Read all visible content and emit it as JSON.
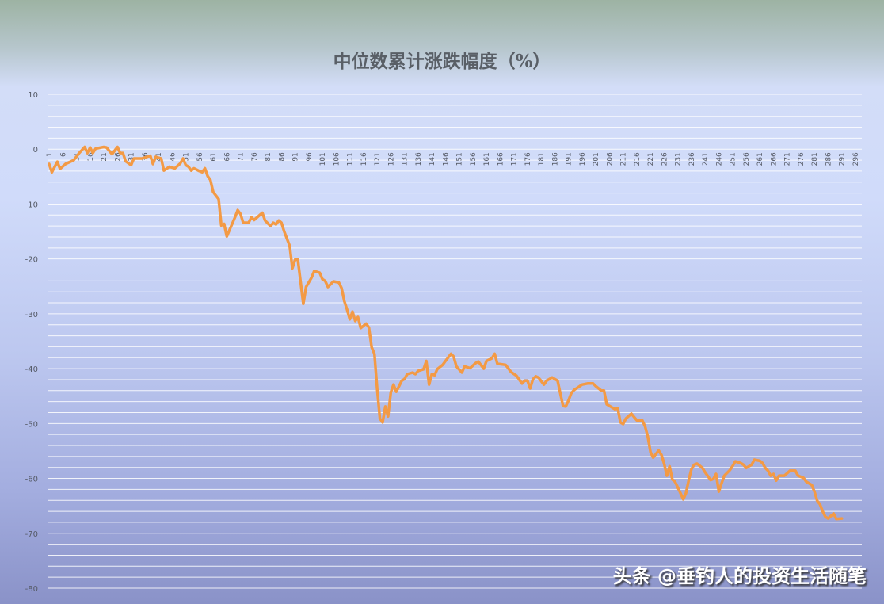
{
  "chart_data": {
    "type": "line",
    "title": "中位数累计涨跌幅度（%）",
    "xlabel": "",
    "ylabel": "",
    "ylim": [
      -80,
      10
    ],
    "y_ticks": [
      10,
      0,
      -10,
      -20,
      -30,
      -40,
      -50,
      -60,
      -70,
      -80
    ],
    "y_minor_grid_step": 2,
    "grid": true,
    "x_tick_labels": [
      1,
      6,
      11,
      16,
      21,
      26,
      31,
      36,
      41,
      46,
      51,
      56,
      61,
      66,
      71,
      76,
      81,
      86,
      91,
      96,
      101,
      106,
      111,
      116,
      121,
      126,
      131,
      136,
      141,
      146,
      151,
      156,
      161,
      166,
      171,
      176,
      181,
      186,
      191,
      196,
      201,
      206,
      211,
      216,
      221,
      226,
      231,
      236,
      241,
      246,
      251,
      256,
      261,
      266,
      271,
      276,
      281,
      286,
      291,
      296
    ],
    "xlim": [
      1,
      298
    ],
    "line_color": "#f39a45",
    "series": [
      {
        "x": [
          1,
          2,
          4,
          5,
          7,
          10,
          12,
          14,
          15,
          16,
          17,
          18,
          21,
          22,
          24,
          26,
          27,
          28,
          29,
          31,
          32,
          35,
          38,
          39,
          40,
          42,
          43,
          45,
          47,
          49,
          50,
          51,
          52,
          53,
          54,
          56,
          57,
          58,
          59,
          60,
          61,
          63,
          64,
          65,
          66,
          67,
          69,
          70,
          71,
          72,
          74,
          75,
          76,
          79,
          80,
          82,
          83,
          84,
          85,
          86,
          87,
          89,
          90,
          91,
          92,
          94,
          95,
          97,
          98,
          100,
          101,
          102,
          103,
          105,
          107,
          108,
          109,
          110,
          111,
          112,
          113,
          114,
          115,
          117,
          118,
          119,
          120,
          121,
          122,
          123,
          124,
          125,
          126,
          127,
          128,
          130,
          131,
          132,
          134,
          135,
          136,
          138,
          139,
          140,
          141,
          142,
          143,
          145,
          146,
          148,
          149,
          150,
          152,
          153,
          155,
          157,
          158,
          160,
          161,
          163,
          164,
          165,
          168,
          170,
          172,
          174,
          175,
          176,
          177,
          178,
          179,
          180,
          182,
          183,
          185,
          187,
          189,
          190,
          191,
          192,
          193,
          196,
          198,
          200,
          201,
          203,
          204,
          205,
          208,
          209,
          210,
          211,
          212,
          214,
          216,
          218,
          219,
          220,
          221,
          222,
          224,
          225,
          226,
          227,
          228,
          229,
          230,
          232,
          233,
          234,
          235,
          236,
          237,
          238,
          240,
          241,
          243,
          244,
          245,
          246,
          247,
          248,
          250,
          251,
          252,
          254,
          255,
          256,
          258,
          259,
          261,
          262,
          263,
          264,
          265,
          266,
          267,
          268,
          270,
          272,
          274,
          275,
          277,
          278,
          279,
          280,
          281,
          282,
          283,
          284,
          285,
          286,
          288,
          289,
          291
        ],
        "y": [
          -2.7,
          -4.2,
          -2.3,
          -3.6,
          -2.7,
          -2.0,
          -0.7,
          0.4,
          -0.7,
          0.3,
          -0.7,
          0.1,
          0.4,
          0.3,
          -0.9,
          0.4,
          -0.7,
          -0.7,
          -2.2,
          -2.9,
          -1.7,
          -1.7,
          -1.2,
          -2.7,
          -1.4,
          -1.7,
          -3.9,
          -3.2,
          -3.5,
          -2.6,
          -1.7,
          -2.9,
          -3.2,
          -3.9,
          -3.5,
          -4.0,
          -4.2,
          -3.5,
          -4.9,
          -5.6,
          -7.8,
          -9.1,
          -13.9,
          -13.6,
          -15.9,
          -14.7,
          -12.4,
          -11.1,
          -11.8,
          -13.4,
          -13.4,
          -12.4,
          -12.9,
          -11.6,
          -13.0,
          -14.0,
          -13.4,
          -13.7,
          -13.0,
          -13.4,
          -15.0,
          -17.6,
          -21.7,
          -20.1,
          -20.1,
          -28.2,
          -25.1,
          -23.4,
          -22.2,
          -22.5,
          -23.7,
          -24.0,
          -25.1,
          -24.1,
          -24.3,
          -25.3,
          -27.7,
          -29.2,
          -31.0,
          -29.6,
          -31.3,
          -30.6,
          -32.6,
          -31.8,
          -32.5,
          -36.1,
          -37.3,
          -43.6,
          -49.1,
          -49.8,
          -46.9,
          -48.7,
          -44.3,
          -42.9,
          -44.2,
          -42.2,
          -41.9,
          -41.0,
          -40.7,
          -41.0,
          -40.4,
          -40.1,
          -38.6,
          -42.9,
          -41.0,
          -41.2,
          -40.1,
          -39.3,
          -38.6,
          -37.3,
          -37.8,
          -39.6,
          -40.7,
          -39.6,
          -39.9,
          -39.0,
          -38.7,
          -40.0,
          -38.6,
          -38.1,
          -37.3,
          -39.1,
          -39.3,
          -40.6,
          -41.3,
          -42.7,
          -42.2,
          -42.2,
          -43.6,
          -41.9,
          -41.4,
          -41.6,
          -42.9,
          -42.2,
          -41.6,
          -42.2,
          -46.8,
          -46.9,
          -45.8,
          -44.5,
          -43.9,
          -42.9,
          -42.7,
          -42.7,
          -43.2,
          -44.0,
          -44.0,
          -46.5,
          -47.4,
          -47.2,
          -49.8,
          -50.1,
          -49.1,
          -48.2,
          -49.4,
          -49.4,
          -50.5,
          -52.3,
          -55.2,
          -56.2,
          -54.9,
          -55.7,
          -57.3,
          -59.5,
          -57.8,
          -60.2,
          -60.6,
          -62.7,
          -63.8,
          -62.7,
          -60.3,
          -58.3,
          -57.5,
          -57.3,
          -58.1,
          -58.9,
          -60.3,
          -60.1,
          -59.2,
          -62.4,
          -60.9,
          -59.5,
          -58.5,
          -57.8,
          -56.9,
          -57.2,
          -57.5,
          -58.1,
          -57.5,
          -56.6,
          -56.8,
          -57.2,
          -58.1,
          -58.6,
          -59.5,
          -59.2,
          -60.4,
          -59.5,
          -59.5,
          -58.6,
          -58.6,
          -59.5,
          -59.9,
          -60.6,
          -60.9,
          -61.2,
          -62.4,
          -64.1,
          -64.7,
          -66.0,
          -67.0,
          -67.3,
          -66.4,
          -67.4,
          -67.3
        ]
      }
    ]
  },
  "watermark": "头条 @垂钓人的投资生活随笔"
}
